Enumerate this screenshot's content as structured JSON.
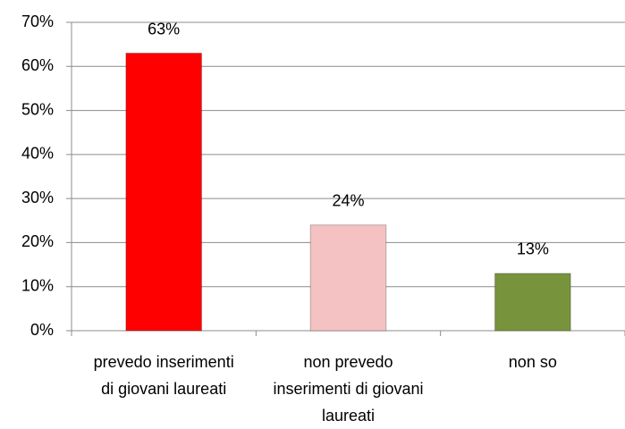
{
  "chart_data": {
    "type": "bar",
    "categories": [
      "prevedo inserimenti di giovani laureati",
      "non prevedo inserimenti di giovani laureati",
      "non so"
    ],
    "values": [
      63,
      24,
      13
    ],
    "value_labels": [
      "63%",
      "24%",
      "13%"
    ],
    "colors": [
      "#ff0000",
      "#f4c2c2",
      "#77933c"
    ],
    "ylim": [
      0,
      70
    ],
    "yticks": [
      {
        "value": 0,
        "label": "0%"
      },
      {
        "value": 10,
        "label": "10%"
      },
      {
        "value": 20,
        "label": "20%"
      },
      {
        "value": 30,
        "label": "30%"
      },
      {
        "value": 40,
        "label": "40%"
      },
      {
        "value": 50,
        "label": "50%"
      },
      {
        "value": 60,
        "label": "60%"
      },
      {
        "value": 70,
        "label": "70%"
      }
    ],
    "grid": true
  }
}
